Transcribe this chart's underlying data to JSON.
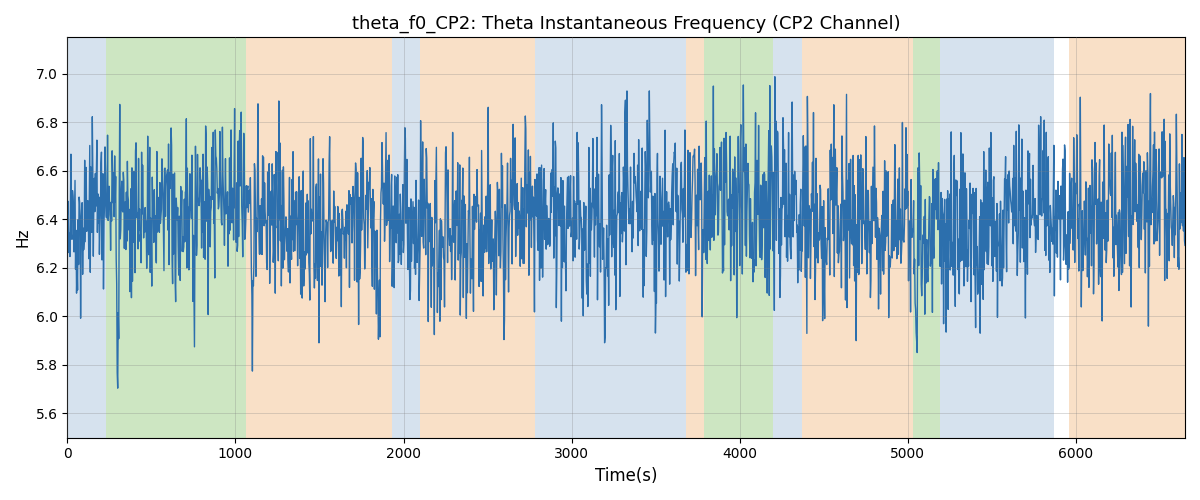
{
  "title": "theta_f0_CP2: Theta Instantaneous Frequency (CP2 Channel)",
  "xlabel": "Time(s)",
  "ylabel": "Hz",
  "ylim": [
    5.5,
    7.15
  ],
  "xlim": [
    0,
    6650
  ],
  "line_color": "#2c6fad",
  "line_width": 1.0,
  "bg_bands": [
    {
      "xmin": 0,
      "xmax": 230,
      "color": "#aec6df",
      "alpha": 0.5
    },
    {
      "xmin": 230,
      "xmax": 1060,
      "color": "#90c878",
      "alpha": 0.45
    },
    {
      "xmin": 1060,
      "xmax": 1930,
      "color": "#f5c89a",
      "alpha": 0.55
    },
    {
      "xmin": 1930,
      "xmax": 2100,
      "color": "#aec6df",
      "alpha": 0.5
    },
    {
      "xmin": 2100,
      "xmax": 2780,
      "color": "#f5c89a",
      "alpha": 0.55
    },
    {
      "xmin": 2780,
      "xmax": 3680,
      "color": "#aec6df",
      "alpha": 0.5
    },
    {
      "xmin": 3680,
      "xmax": 3790,
      "color": "#f5c89a",
      "alpha": 0.55
    },
    {
      "xmin": 3790,
      "xmax": 4200,
      "color": "#90c878",
      "alpha": 0.45
    },
    {
      "xmin": 4200,
      "xmax": 4370,
      "color": "#aec6df",
      "alpha": 0.5
    },
    {
      "xmin": 4370,
      "xmax": 5030,
      "color": "#f5c89a",
      "alpha": 0.55
    },
    {
      "xmin": 5030,
      "xmax": 5190,
      "color": "#90c878",
      "alpha": 0.45
    },
    {
      "xmin": 5190,
      "xmax": 5870,
      "color": "#aec6df",
      "alpha": 0.5
    },
    {
      "xmin": 5870,
      "xmax": 5960,
      "color": "#ffffff",
      "alpha": 0.0
    },
    {
      "xmin": 5960,
      "xmax": 6650,
      "color": "#f5c89a",
      "alpha": 0.55
    }
  ],
  "n_samples": 2200,
  "seed": 7,
  "mean_freq": 6.42,
  "noise_std": 0.18,
  "title_fontsize": 13,
  "yticks": [
    5.6,
    5.8,
    6.0,
    6.2,
    6.4,
    6.6,
    6.8,
    7.0
  ]
}
